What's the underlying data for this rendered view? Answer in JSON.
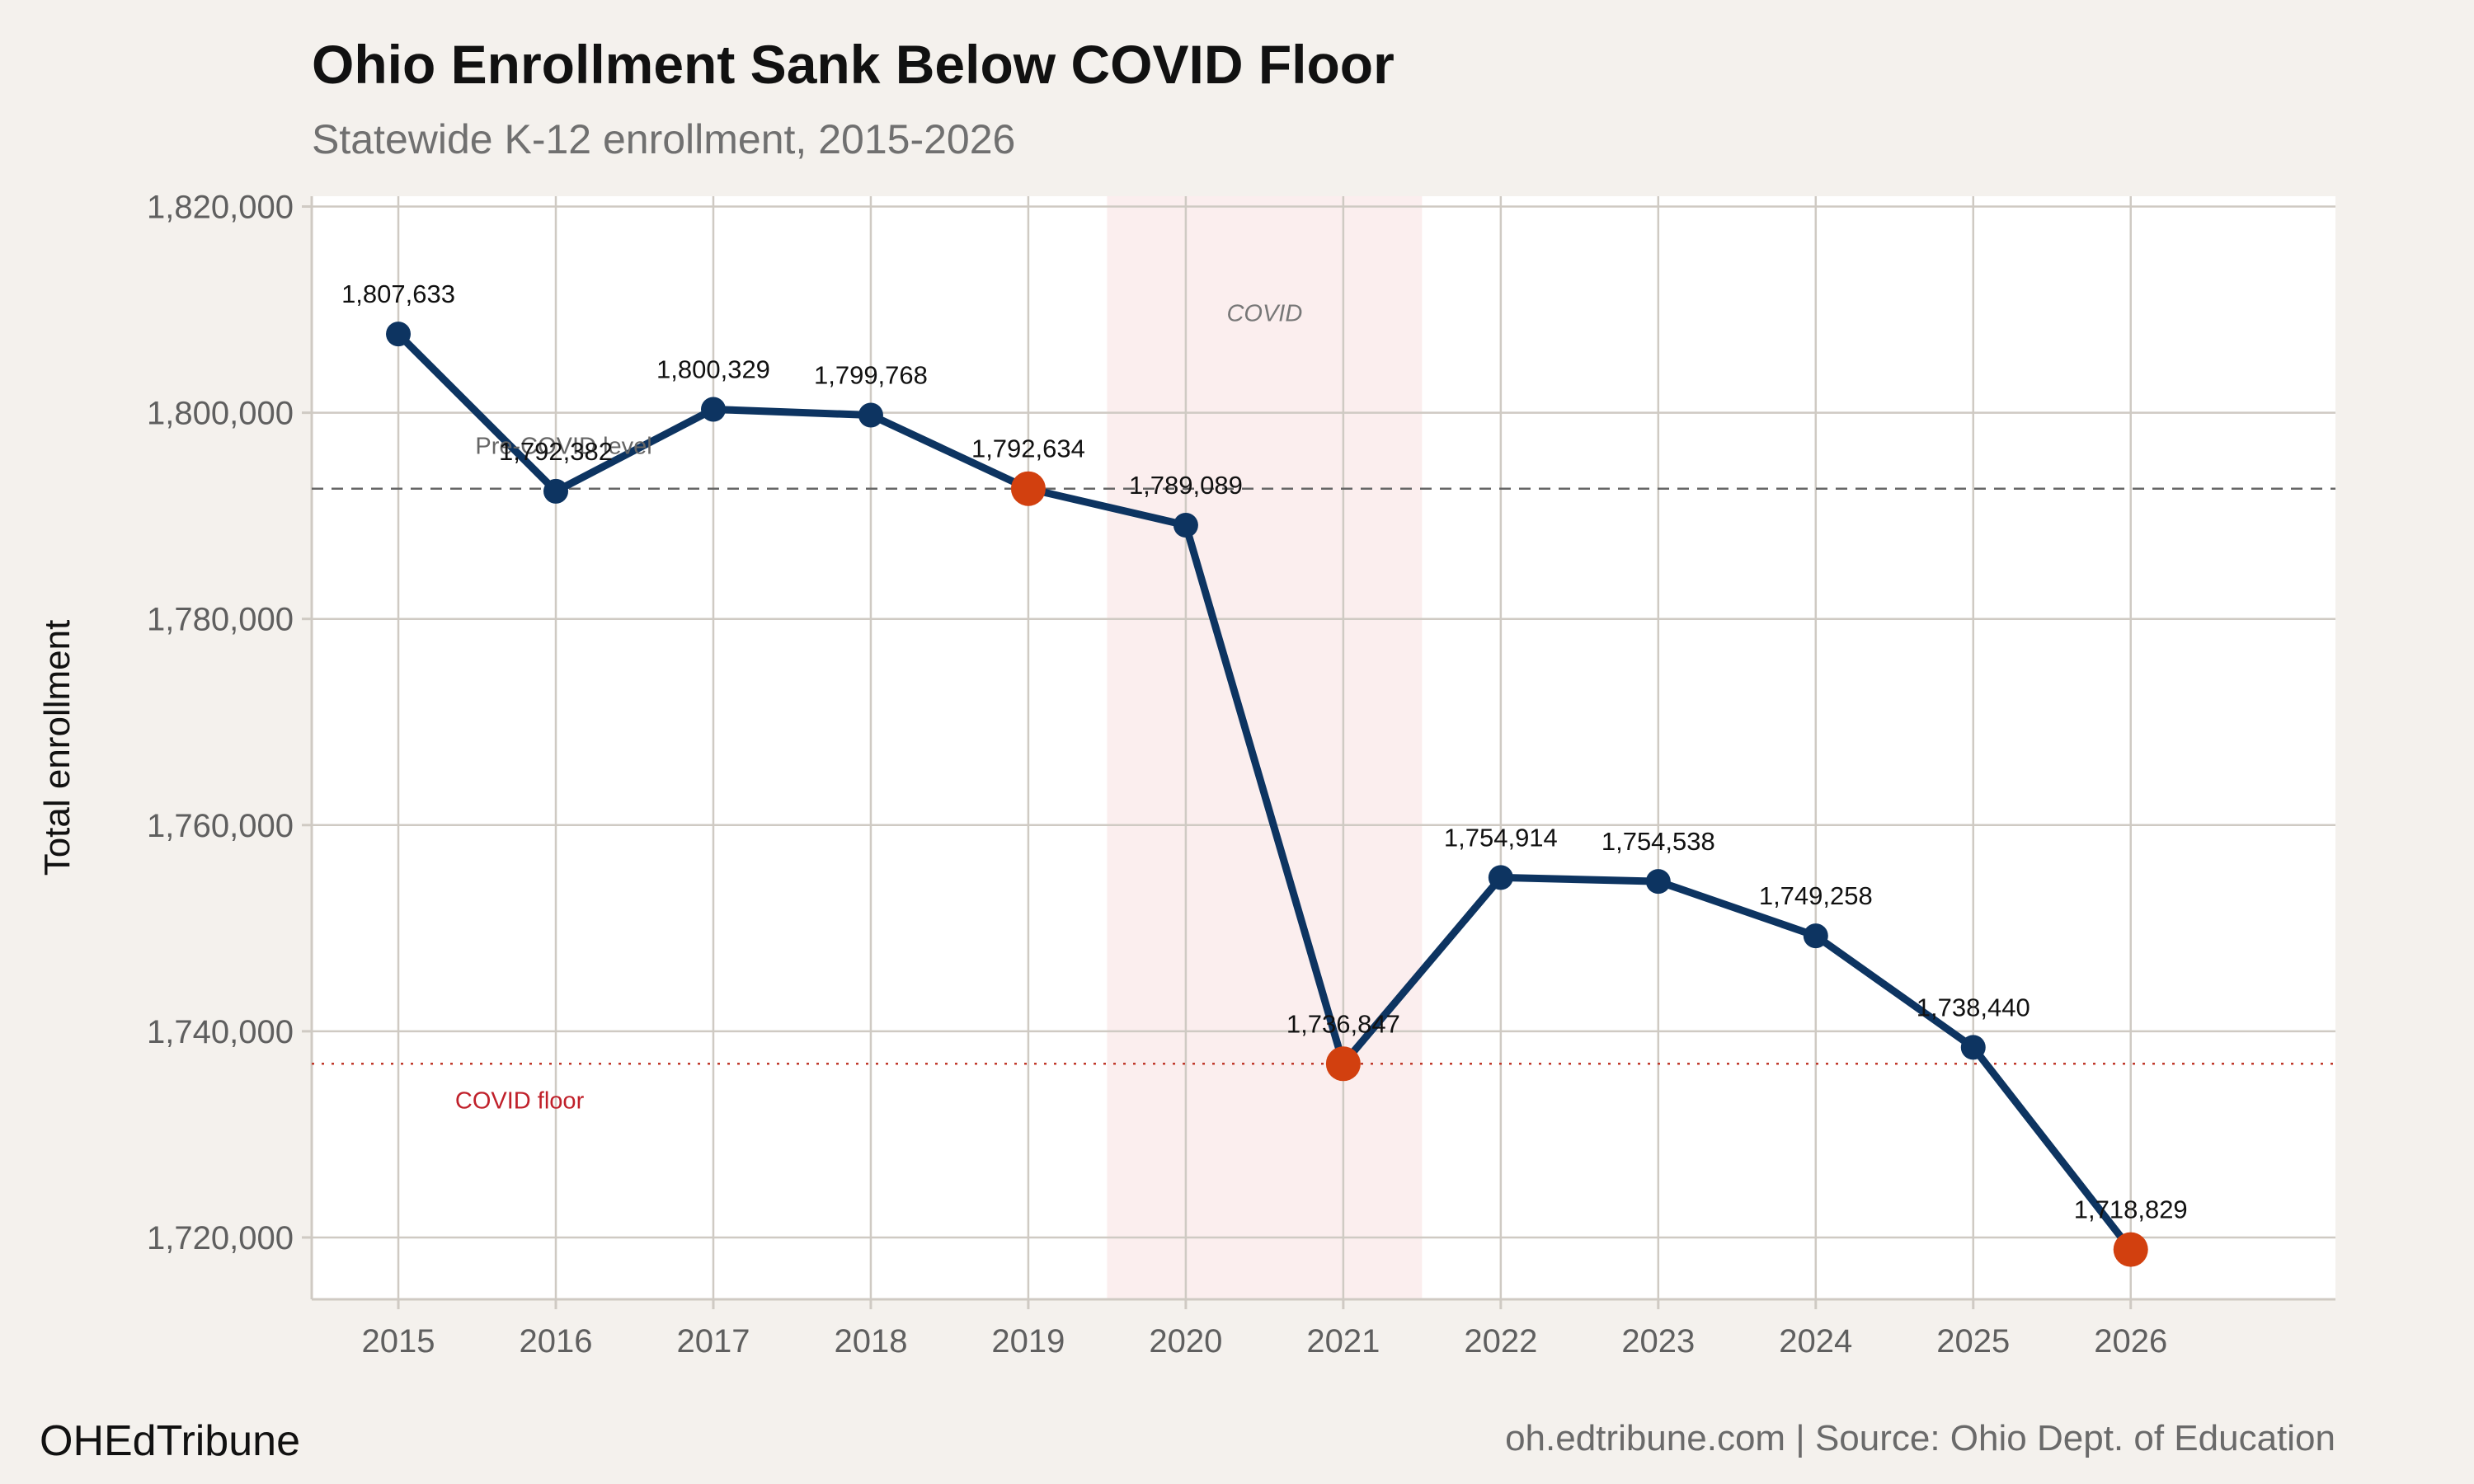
{
  "header": {
    "title": "Ohio Enrollment Sank Below COVID Floor",
    "subtitle": "Statewide K-12 enrollment, 2015-2026"
  },
  "footer": {
    "brand": "OHEdTribune",
    "source": "oh.edtribune.com | Source: Ohio Dept. of Education"
  },
  "colors": {
    "background": "#f4f1ed",
    "panel": "#ffffff",
    "grid": "#cfcac3",
    "line": "#0d3461",
    "highlight": "#d2400f",
    "covid_band": "#fbeeee",
    "reference_line": "#666666",
    "floor_line": "#c0392b",
    "floor_text": "#c0202a"
  },
  "chart_data": {
    "type": "line",
    "title": "Ohio Enrollment Sank Below COVID Floor",
    "subtitle": "Statewide K-12 enrollment, 2015-2026",
    "xlabel": "",
    "ylabel": "Total enrollment",
    "x": [
      2015,
      2016,
      2017,
      2018,
      2019,
      2020,
      2021,
      2022,
      2023,
      2024,
      2025,
      2026
    ],
    "x_tick_labels": [
      "2015",
      "2016",
      "2017",
      "2018",
      "2019",
      "2020",
      "2021",
      "2022",
      "2023",
      "2024",
      "2025",
      "2026"
    ],
    "y": [
      1807633,
      1792382,
      1800329,
      1799768,
      1792634,
      1789089,
      1736847,
      1754914,
      1754538,
      1749258,
      1738440,
      1718829
    ],
    "y_labels": [
      "1,807,633",
      "1,792,382",
      "1,800,329",
      "1,799,768",
      "1,792,634",
      "1,789,089",
      "1,736,847",
      "1,754,914",
      "1,754,538",
      "1,749,258",
      "1,738,440",
      "1,718,829"
    ],
    "highlighted_years": [
      2019,
      2021,
      2026
    ],
    "ylim": [
      1714000,
      1821000
    ],
    "xlim": [
      2014.45,
      2027.3
    ],
    "y_ticks": [
      1720000,
      1740000,
      1760000,
      1780000,
      1800000,
      1820000
    ],
    "y_tick_labels": [
      "1,720,000",
      "1,740,000",
      "1,760,000",
      "1,780,000",
      "1,800,000",
      "1,820,000"
    ],
    "grid": true,
    "legend": "none",
    "annotations": {
      "covid_band": {
        "x_start": 2019.5,
        "x_end": 2021.5,
        "label": "COVID"
      },
      "pre_covid_line": {
        "y": 1792634,
        "label": "Pre-COVID level"
      },
      "covid_floor_line": {
        "y": 1736847,
        "label": "COVID floor"
      }
    }
  }
}
